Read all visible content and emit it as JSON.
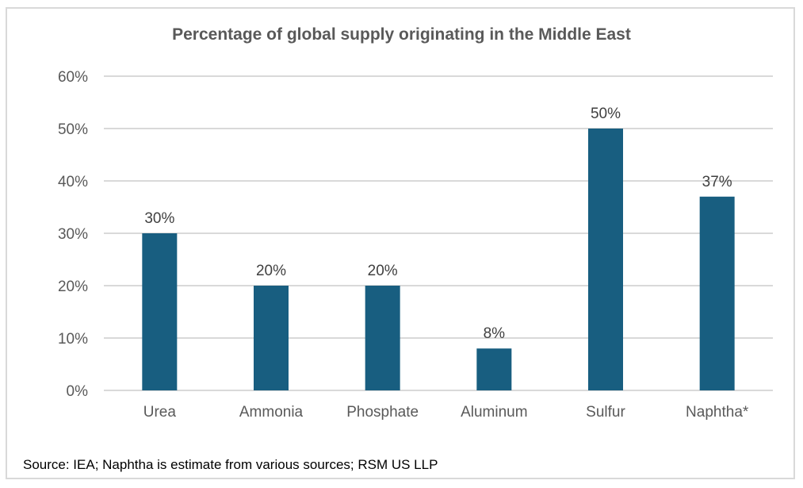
{
  "chart_data": {
    "type": "bar",
    "title": "Percentage of global supply originating in the Middle East",
    "categories": [
      "Urea",
      "Ammonia",
      "Phosphate",
      "Aluminum",
      "Sulfur",
      "Naphtha*"
    ],
    "values": [
      30,
      20,
      20,
      8,
      50,
      37
    ],
    "data_labels": [
      "30%",
      "20%",
      "20%",
      "8%",
      "50%",
      "37%"
    ],
    "xlabel": "",
    "ylabel": "",
    "ylim": [
      0,
      60
    ],
    "yticks": [
      0,
      10,
      20,
      30,
      40,
      50,
      60
    ],
    "ytick_labels": [
      "0%",
      "10%",
      "20%",
      "30%",
      "40%",
      "50%",
      "60%"
    ],
    "grid": true,
    "legend": "none",
    "bar_color": "#185e80",
    "grid_color": "#d9d9d9"
  },
  "footer": {
    "source": "Source: IEA; Naphtha is estimate from various sources; RSM US LLP"
  }
}
